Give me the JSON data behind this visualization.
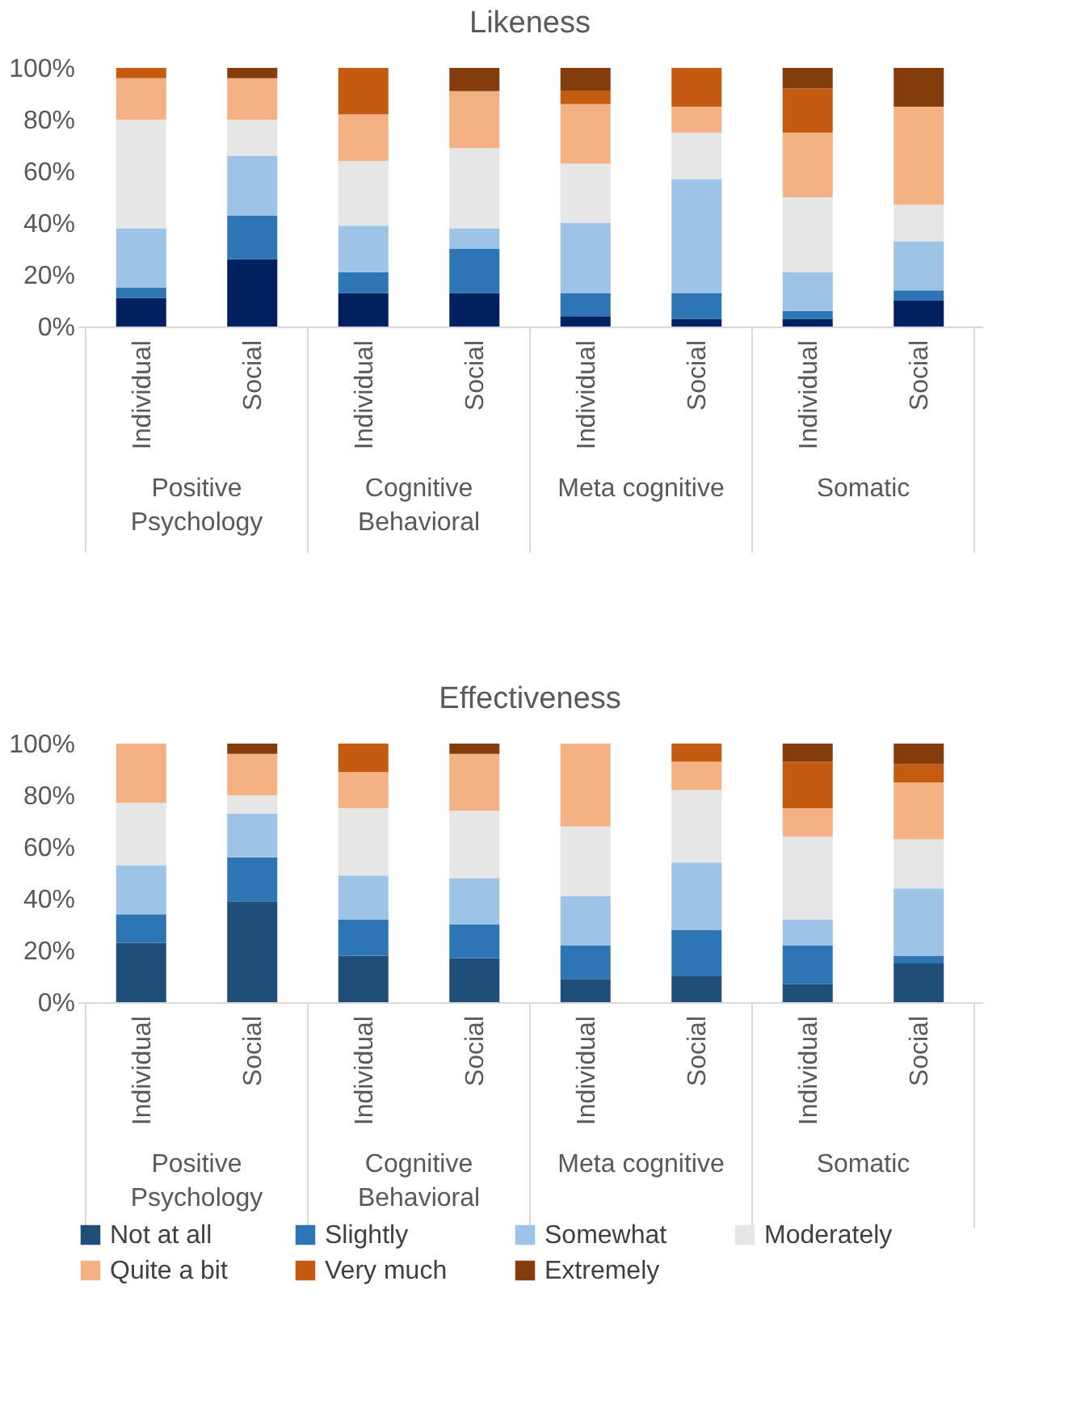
{
  "chart_data": [
    {
      "type": "bar",
      "stacked": true,
      "title": "Likeness",
      "categories": [
        "Individual",
        "Social",
        "Individual",
        "Social",
        "Individual",
        "Social",
        "Individual",
        "Social"
      ],
      "annotations": [
        "Positive Psychology",
        "Cognitive Behavioral",
        "Meta cognitive",
        "Somatic"
      ],
      "ylim": [
        0,
        100
      ],
      "yticks": [
        {
          "value": 0,
          "label": "0%"
        },
        {
          "value": 20,
          "label": "20%"
        },
        {
          "value": 40,
          "label": "40%"
        },
        {
          "value": 60,
          "label": "60%"
        },
        {
          "value": 80,
          "label": "80%"
        },
        {
          "value": 100,
          "label": "100%"
        }
      ],
      "grid": false,
      "series": [
        {
          "color": "#002060",
          "values": [
            11,
            26,
            13,
            13,
            4,
            3,
            3,
            10
          ]
        },
        {
          "color": "#2e75b6",
          "values": [
            4,
            17,
            8,
            17,
            9,
            10,
            3,
            4
          ]
        },
        {
          "color": "#9dc3e6",
          "values": [
            23,
            23,
            18,
            8,
            27,
            44,
            15,
            19
          ]
        },
        {
          "color": "#e7e6e6",
          "values": [
            42,
            14,
            25,
            31,
            23,
            18,
            29,
            14
          ]
        },
        {
          "color": "#f4b183",
          "values": [
            16,
            16,
            18,
            22,
            23,
            10,
            25,
            38
          ]
        },
        {
          "color": "#c55a11",
          "values": [
            4,
            0,
            18,
            0,
            5,
            15,
            17,
            0
          ]
        },
        {
          "color": "#843c0c",
          "values": [
            0,
            4,
            0,
            9,
            9,
            0,
            8,
            15
          ]
        }
      ]
    },
    {
      "type": "bar",
      "stacked": true,
      "title": "Effectiveness",
      "categories": [
        "Individual",
        "Social",
        "Individual",
        "Social",
        "Individual",
        "Social",
        "Individual",
        "Social"
      ],
      "annotations": [
        "Positive Psychology",
        "Cognitive Behavioral",
        "Meta cognitive",
        "Somatic"
      ],
      "ylim": [
        0,
        100
      ],
      "yticks": [
        {
          "value": 0,
          "label": "0%"
        },
        {
          "value": 20,
          "label": "20%"
        },
        {
          "value": 40,
          "label": "40%"
        },
        {
          "value": 60,
          "label": "60%"
        },
        {
          "value": 80,
          "label": "80%"
        },
        {
          "value": 100,
          "label": "100%"
        }
      ],
      "grid": false,
      "legend": "bottom",
      "series": [
        {
          "name": "Not at all",
          "color": "#1f4e79",
          "values": [
            23,
            39,
            18,
            17,
            9,
            10,
            7,
            15
          ]
        },
        {
          "name": "Slightly",
          "color": "#2e75b6",
          "values": [
            11,
            17,
            14,
            13,
            13,
            18,
            15,
            3
          ]
        },
        {
          "name": "Somewhat",
          "color": "#9dc3e6",
          "values": [
            19,
            17,
            17,
            18,
            19,
            26,
            10,
            26
          ]
        },
        {
          "name": "Moderately",
          "color": "#e7e6e6",
          "values": [
            24,
            7,
            26,
            26,
            27,
            28,
            32,
            19
          ]
        },
        {
          "name": "Quite a bit",
          "color": "#f4b183",
          "values": [
            23,
            16,
            14,
            22,
            32,
            11,
            11,
            22
          ]
        },
        {
          "name": "Very much",
          "color": "#c55a11",
          "values": [
            0,
            0,
            11,
            0,
            0,
            7,
            18,
            7
          ]
        },
        {
          "name": "Extremely",
          "color": "#843c0c",
          "values": [
            0,
            4,
            0,
            4,
            0,
            0,
            7,
            8
          ]
        }
      ]
    }
  ]
}
